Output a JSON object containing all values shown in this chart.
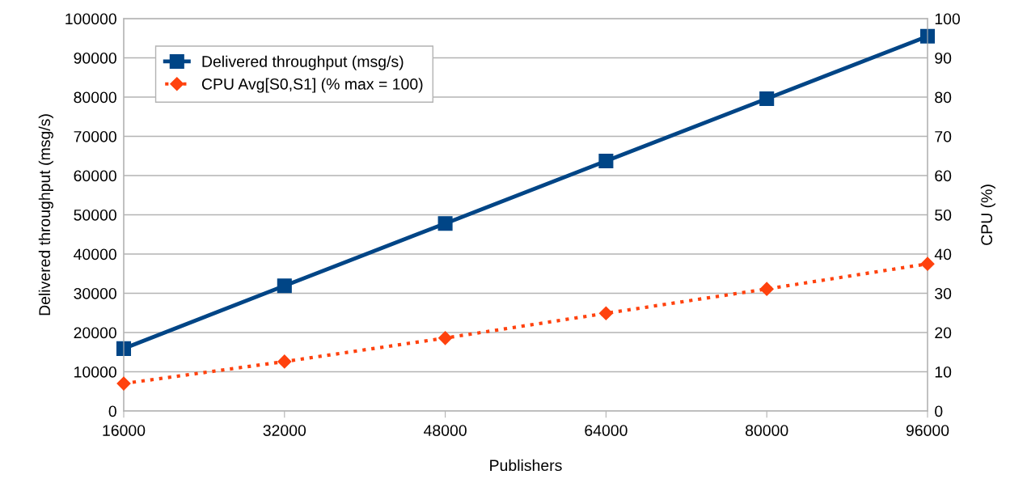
{
  "chart_data": {
    "type": "line",
    "xlabel": "Publishers",
    "ylabel": "Delivered throughput (msg/s)",
    "y2label": "CPU (%)",
    "x": [
      16000,
      32000,
      48000,
      64000,
      80000,
      96000
    ],
    "xlim": [
      16000,
      96000
    ],
    "xticks": [
      16000,
      32000,
      48000,
      64000,
      80000,
      96000
    ],
    "ylim": [
      0,
      100000
    ],
    "yticks": [
      0,
      10000,
      20000,
      30000,
      40000,
      50000,
      60000,
      70000,
      80000,
      90000,
      100000
    ],
    "y2lim": [
      0,
      100
    ],
    "y2ticks": [
      0,
      10,
      20,
      30,
      40,
      50,
      60,
      70,
      80,
      90,
      100
    ],
    "grid": "y",
    "legend": "top left",
    "series": [
      {
        "name": "Delivered throughput (msg/s)",
        "color": "#004586",
        "marker": "square",
        "line_style": "solid",
        "values": [
          15900,
          31900,
          47800,
          63700,
          79600,
          95500
        ]
      },
      {
        "name": "CPU Avg[S0,S1] (% max = 100)",
        "color": "#ff420e",
        "marker": "diamond",
        "line_style": "dotted",
        "axis": "y2",
        "values": [
          7.0,
          12.6,
          18.6,
          24.9,
          31.1,
          37.5
        ]
      }
    ]
  }
}
